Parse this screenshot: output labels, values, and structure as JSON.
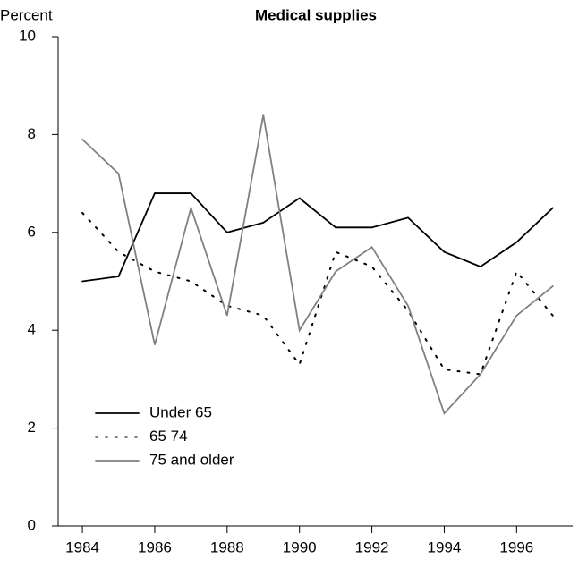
{
  "chart_data": {
    "type": "line",
    "title": "Medical supplies",
    "y_label": "Percent",
    "x": [
      1984,
      1985,
      1986,
      1987,
      1988,
      1989,
      1990,
      1991,
      1992,
      1993,
      1994,
      1995,
      1996,
      1997
    ],
    "series": [
      {
        "name": "Under 65",
        "color": "#000000",
        "dash": "solid",
        "values": [
          5.0,
          5.1,
          6.8,
          6.8,
          6.0,
          6.2,
          6.7,
          6.1,
          6.1,
          6.3,
          5.6,
          5.3,
          5.8,
          6.5
        ]
      },
      {
        "name": "65 74",
        "color": "#000000",
        "dash": "dotted",
        "values": [
          6.4,
          5.6,
          5.2,
          5.0,
          4.5,
          4.3,
          3.3,
          5.6,
          5.3,
          4.4,
          3.2,
          3.1,
          5.2,
          4.3
        ]
      },
      {
        "name": "75 and older",
        "color": "#808080",
        "dash": "solid",
        "values": [
          7.9,
          7.2,
          3.7,
          6.5,
          4.3,
          8.4,
          4.0,
          5.2,
          5.7,
          4.5,
          2.3,
          3.1,
          4.3,
          4.9
        ]
      }
    ],
    "xlim": [
      1983.33,
      1997.55
    ],
    "xticks": [
      1984,
      1986,
      1988,
      1990,
      1992,
      1994,
      1996
    ],
    "ylim": [
      0,
      10
    ],
    "yticks": [
      0,
      2,
      4,
      6,
      8,
      10
    ],
    "grid": false,
    "legend": "lower left"
  }
}
